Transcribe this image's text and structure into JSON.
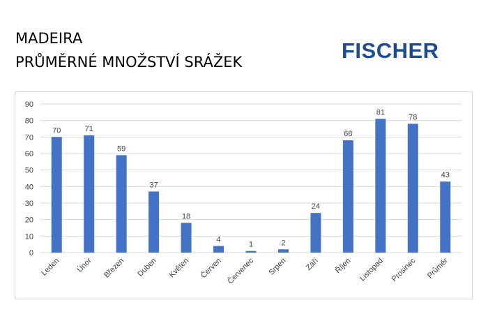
{
  "header": {
    "title_line1": "MADEIRA",
    "title_line2": "PRŮMĚRNÉ MNOŽSTVÍ SRÁŽEK",
    "logo_text": "FISCHER"
  },
  "colors": {
    "bar": "#4472c4",
    "grid": "#d9d9d9",
    "text": "#404040",
    "logo": "#1f4c8f"
  },
  "chart_data": {
    "type": "bar",
    "categories": [
      "Leden",
      "Únor",
      "Březen",
      "Duben",
      "Květen",
      "Červen",
      "Červenec",
      "Srpen",
      "Září",
      "Říjen",
      "Listopad",
      "Prosinec",
      "Průměr"
    ],
    "series": [
      {
        "values": [
          70,
          71,
          59,
          37,
          18,
          4,
          1,
          2,
          24,
          68,
          81,
          78,
          43
        ]
      }
    ],
    "data_labels": [
      "70",
      "71",
      "59",
      "37",
      "18",
      "4",
      "1",
      "2",
      "24",
      "68",
      "81",
      "78",
      "43"
    ],
    "yticks": [
      "0",
      "10",
      "20",
      "30",
      "40",
      "50",
      "60",
      "70",
      "80",
      "90"
    ],
    "ylim": [
      0,
      90
    ],
    "grid": true,
    "legend": "none"
  }
}
